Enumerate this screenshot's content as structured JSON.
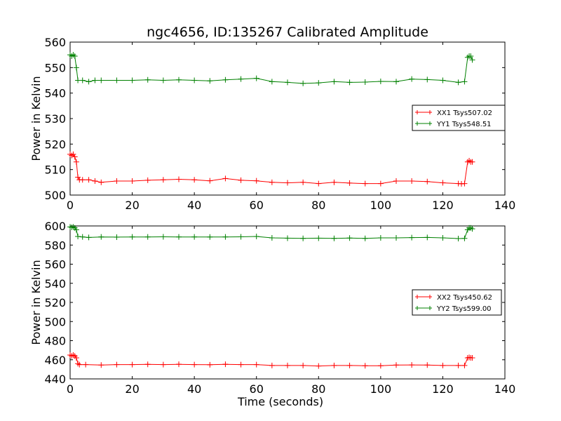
{
  "chart_data": [
    {
      "type": "line",
      "title": "ngc4656, ID:135267 Calibrated Amplitude",
      "xlabel": "",
      "ylabel": "Power in Kelvin",
      "xlim": [
        0,
        140
      ],
      "ylim": [
        500,
        560
      ],
      "x_ticks": [
        "0",
        "20",
        "40",
        "60",
        "80",
        "100",
        "120",
        "140"
      ],
      "y_ticks": [
        "500",
        "510",
        "520",
        "530",
        "540",
        "550",
        "560"
      ],
      "legend_position": "center-right",
      "marker": "+",
      "series": [
        {
          "name": "XX1 Tsys507.02",
          "color": "#ff0000",
          "points": [
            [
              0,
              516
            ],
            [
              0.5,
              515.5
            ],
            [
              1,
              516
            ],
            [
              1.5,
              515
            ],
            [
              2,
              513
            ],
            [
              2.5,
              507
            ],
            [
              3,
              506
            ],
            [
              4,
              506
            ],
            [
              6,
              506
            ],
            [
              8,
              505.5
            ],
            [
              10,
              505
            ],
            [
              15,
              505.5
            ],
            [
              20,
              505.5
            ],
            [
              25,
              505.8
            ],
            [
              30,
              506
            ],
            [
              35,
              506.2
            ],
            [
              40,
              506
            ],
            [
              45,
              505.6
            ],
            [
              50,
              506.5
            ],
            [
              55,
              505.8
            ],
            [
              60,
              505.6
            ],
            [
              65,
              505
            ],
            [
              70,
              504.8
            ],
            [
              75,
              505
            ],
            [
              80,
              504.5
            ],
            [
              85,
              505
            ],
            [
              90,
              504.7
            ],
            [
              95,
              504.5
            ],
            [
              100,
              504.5
            ],
            [
              105,
              505.5
            ],
            [
              110,
              505.5
            ],
            [
              115,
              505.3
            ],
            [
              120,
              504.8
            ],
            [
              125,
              504.5
            ],
            [
              126,
              504.4
            ],
            [
              127,
              504.5
            ],
            [
              128,
              513
            ],
            [
              128.5,
              513.5
            ],
            [
              129,
              513
            ],
            [
              129.5,
              513
            ]
          ]
        },
        {
          "name": "YY1 Tsys548.51",
          "color": "#008000",
          "points": [
            [
              0,
              555
            ],
            [
              0.5,
              554.5
            ],
            [
              1,
              555
            ],
            [
              1.5,
              554.5
            ],
            [
              2,
              550
            ],
            [
              2.5,
              545
            ],
            [
              4,
              545
            ],
            [
              6,
              544.5
            ],
            [
              8,
              545
            ],
            [
              10,
              545
            ],
            [
              15,
              545
            ],
            [
              20,
              545
            ],
            [
              25,
              545.2
            ],
            [
              30,
              545
            ],
            [
              35,
              545.2
            ],
            [
              40,
              545
            ],
            [
              45,
              544.8
            ],
            [
              50,
              545.2
            ],
            [
              55,
              545.5
            ],
            [
              60,
              545.8
            ],
            [
              65,
              544.5
            ],
            [
              70,
              544.2
            ],
            [
              75,
              543.8
            ],
            [
              80,
              544
            ],
            [
              85,
              544.5
            ],
            [
              90,
              544.2
            ],
            [
              95,
              544.3
            ],
            [
              100,
              544.6
            ],
            [
              105,
              544.5
            ],
            [
              110,
              545.5
            ],
            [
              115,
              545.3
            ],
            [
              120,
              545
            ],
            [
              125,
              544.2
            ],
            [
              127,
              544.5
            ],
            [
              128,
              554
            ],
            [
              128.5,
              554.5
            ],
            [
              129,
              554.5
            ],
            [
              129.5,
              553
            ]
          ]
        }
      ]
    },
    {
      "type": "line",
      "title": "",
      "xlabel": "Time (seconds)",
      "ylabel": "Power in Kelvin",
      "xlim": [
        0,
        140
      ],
      "ylim": [
        440,
        600
      ],
      "x_ticks": [
        "0",
        "20",
        "40",
        "60",
        "80",
        "100",
        "120",
        "140"
      ],
      "y_ticks": [
        "440",
        "460",
        "480",
        "500",
        "520",
        "540",
        "560",
        "580",
        "600"
      ],
      "legend_position": "center-right",
      "marker": "+",
      "series": [
        {
          "name": "XX2 Tsys450.62",
          "color": "#ff0000",
          "points": [
            [
              0,
              465
            ],
            [
              0.5,
              464
            ],
            [
              1,
              465
            ],
            [
              1.5,
              464
            ],
            [
              2,
              462
            ],
            [
              2.5,
              456
            ],
            [
              3,
              455
            ],
            [
              5,
              455
            ],
            [
              10,
              454.5
            ],
            [
              15,
              455
            ],
            [
              20,
              455
            ],
            [
              25,
              455.2
            ],
            [
              30,
              455
            ],
            [
              35,
              455.3
            ],
            [
              40,
              455
            ],
            [
              45,
              454.8
            ],
            [
              50,
              455.3
            ],
            [
              55,
              455
            ],
            [
              60,
              455
            ],
            [
              65,
              454
            ],
            [
              70,
              454
            ],
            [
              75,
              454
            ],
            [
              80,
              453.5
            ],
            [
              85,
              454
            ],
            [
              90,
              454
            ],
            [
              95,
              453.8
            ],
            [
              100,
              453.8
            ],
            [
              105,
              454.5
            ],
            [
              110,
              454.6
            ],
            [
              115,
              454.5
            ],
            [
              120,
              454
            ],
            [
              125,
              454
            ],
            [
              127,
              454
            ],
            [
              128,
              462
            ],
            [
              128.5,
              462.5
            ],
            [
              129,
              462
            ],
            [
              129.5,
              462
            ]
          ]
        },
        {
          "name": "YY2 Tsys599.00",
          "color": "#008000",
          "points": [
            [
              0,
              599
            ],
            [
              0.5,
              598.5
            ],
            [
              1,
              599
            ],
            [
              1.5,
              598
            ],
            [
              2,
              596
            ],
            [
              2.5,
              589
            ],
            [
              4,
              588.5
            ],
            [
              6,
              588
            ],
            [
              10,
              588.5
            ],
            [
              15,
              588.3
            ],
            [
              20,
              588.5
            ],
            [
              25,
              588.5
            ],
            [
              30,
              588.6
            ],
            [
              35,
              588.5
            ],
            [
              40,
              588.5
            ],
            [
              45,
              588.4
            ],
            [
              50,
              588.5
            ],
            [
              55,
              588.6
            ],
            [
              60,
              589
            ],
            [
              65,
              587.5
            ],
            [
              70,
              587.2
            ],
            [
              75,
              587
            ],
            [
              80,
              587.2
            ],
            [
              85,
              587
            ],
            [
              90,
              587.3
            ],
            [
              95,
              587
            ],
            [
              100,
              587.5
            ],
            [
              105,
              587.5
            ],
            [
              110,
              587.8
            ],
            [
              115,
              588
            ],
            [
              120,
              587.5
            ],
            [
              125,
              586.8
            ],
            [
              127,
              587
            ],
            [
              128,
              596
            ],
            [
              128.5,
              598
            ],
            [
              129,
              598
            ],
            [
              129.5,
              597
            ]
          ]
        }
      ]
    }
  ]
}
